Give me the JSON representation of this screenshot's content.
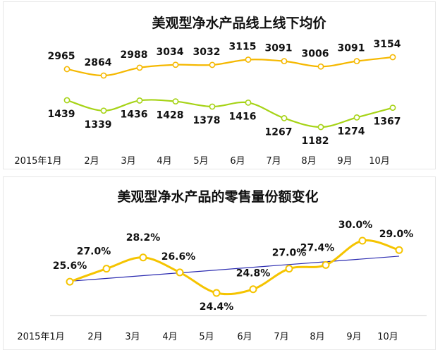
{
  "chart_data": [
    {
      "type": "line",
      "title": "美观型净水产品线上线下均价",
      "categories": [
        "2015年1月",
        "2月",
        "3月",
        "4月",
        "5月",
        "6月",
        "7月",
        "8月",
        "9月",
        "10月"
      ],
      "series": [
        {
          "values": [
            2965,
            2864,
            2988,
            3034,
            3032,
            3115,
            3091,
            3006,
            3091,
            3154
          ],
          "color": "#f5b800"
        },
        {
          "values": [
            1439,
            1339,
            1436,
            1428,
            1378,
            1416,
            1267,
            1182,
            1274,
            1367
          ],
          "color": "#a6d316"
        }
      ]
    },
    {
      "type": "line",
      "title": "美观型净水产品的零售量份额变化",
      "categories": [
        "2015年1月",
        "2月",
        "3月",
        "4月",
        "5月",
        "6月",
        "7月",
        "8月",
        "9月",
        "10月"
      ],
      "series": [
        {
          "values": [
            25.6,
            27.0,
            28.2,
            26.6,
            24.4,
            24.8,
            27.0,
            27.4,
            30.0,
            29.0
          ],
          "labels": [
            "25.6%",
            "27.0%",
            "28.2%",
            "26.6%",
            "24.4%",
            "24.8%",
            "27.0%",
            "27.4%",
            "30.0%",
            "29.0%"
          ],
          "color": "#f5c400"
        }
      ],
      "trendline": {
        "color": "#2a2ab0"
      }
    }
  ]
}
